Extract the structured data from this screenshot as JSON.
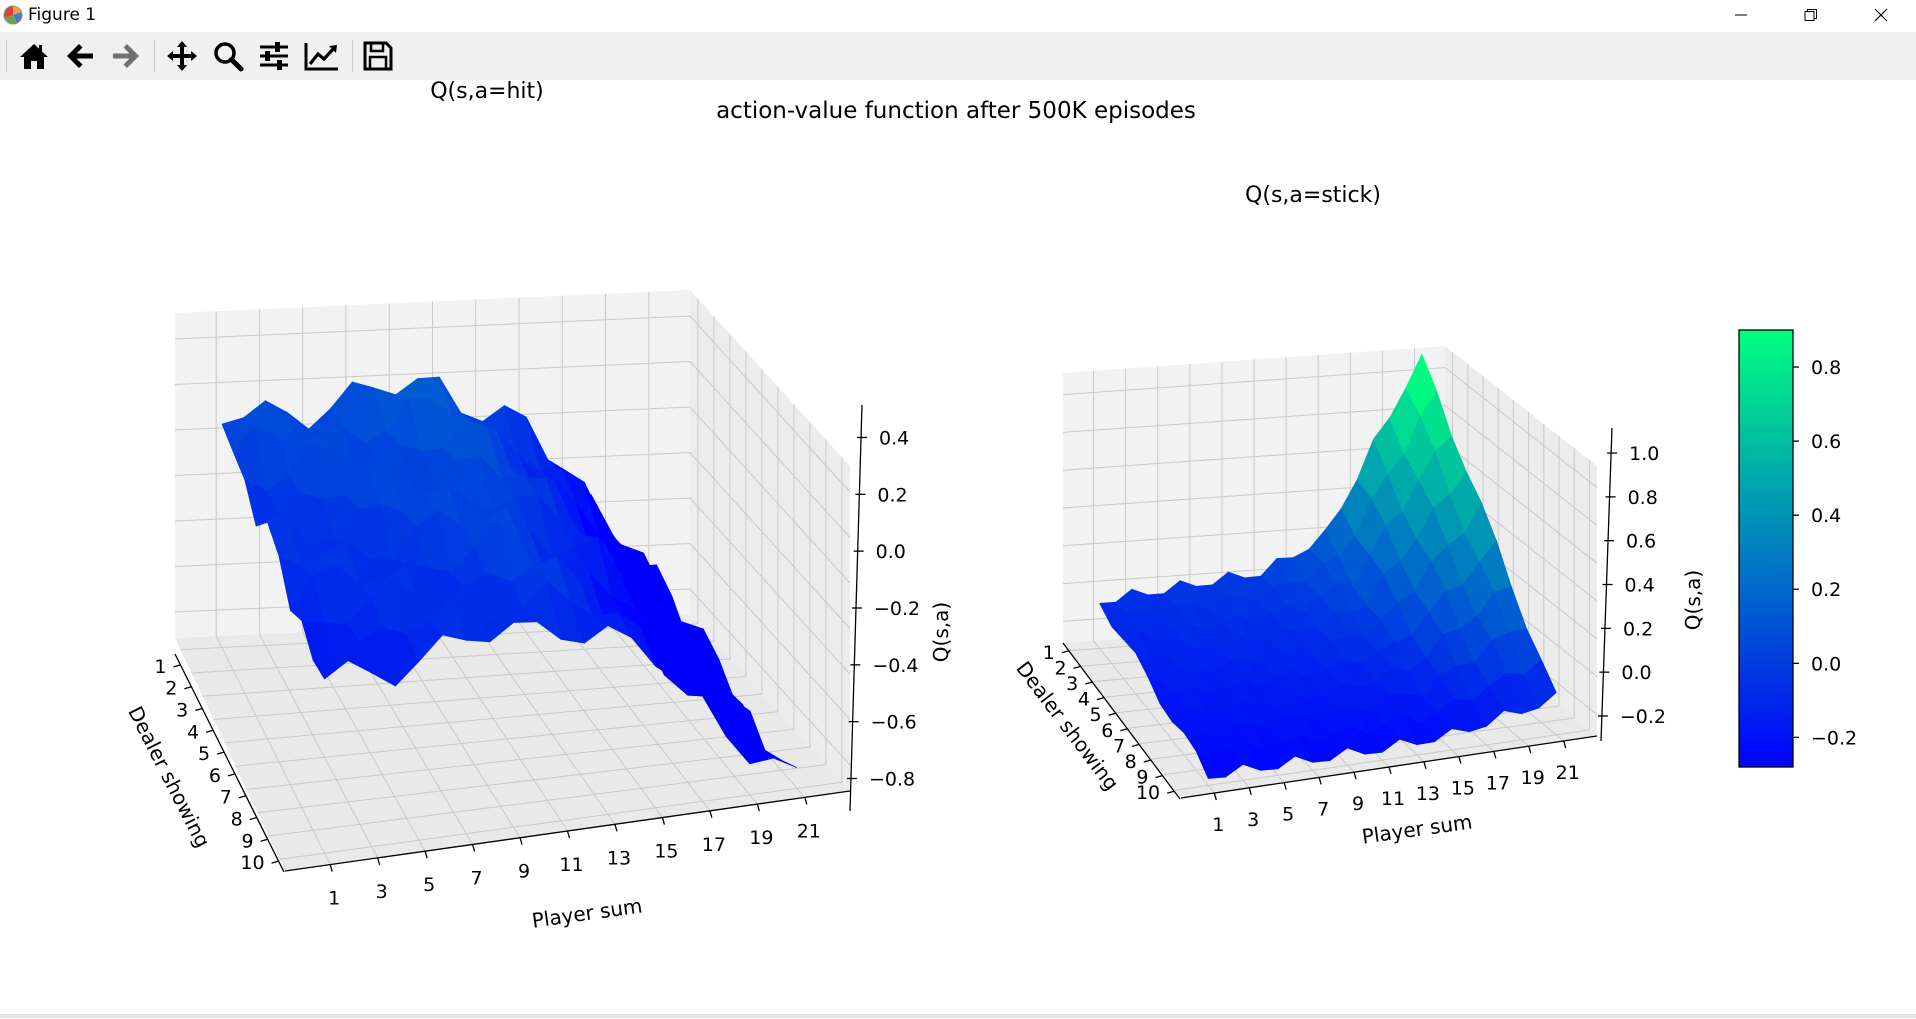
{
  "window": {
    "title": "Figure 1",
    "app_icon": "matplotlib-icon",
    "controls": [
      "minimize-icon",
      "restore-icon",
      "close-icon"
    ]
  },
  "toolbar": {
    "buttons": [
      {
        "name": "home",
        "icon": "home-icon"
      },
      {
        "name": "back",
        "icon": "arrow-left-icon"
      },
      {
        "name": "forward",
        "icon": "arrow-right-icon"
      },
      {
        "name": "pan",
        "icon": "move-icon"
      },
      {
        "name": "zoom",
        "icon": "search-icon"
      },
      {
        "name": "configure-subplots",
        "icon": "sliders-icon"
      },
      {
        "name": "edit-axes",
        "icon": "chart-line-icon"
      },
      {
        "name": "save",
        "icon": "save-icon"
      }
    ]
  },
  "figure": {
    "suptitle": "action-value function after 500K episodes",
    "colormap": "winter",
    "colors": {
      "low": "#0000ff",
      "high": "#00ff80",
      "pane": "#f2f2f2",
      "grid": "#c8c8c8"
    }
  },
  "chart_data": [
    {
      "type": "surface",
      "title": "Q(s,a=hit)",
      "xlabel": "Player sum",
      "ylabel": "Dealer showing",
      "zlabel": "Q(s,a)",
      "x_ticks": [
        "1",
        "3",
        "5",
        "7",
        "9",
        "11",
        "13",
        "15",
        "17",
        "19",
        "21"
      ],
      "y_ticks": [
        "1",
        "2",
        "3",
        "4",
        "5",
        "6",
        "7",
        "8",
        "9",
        "10"
      ],
      "z_ticks": [
        "−0.8",
        "−0.6",
        "−0.4",
        "−0.2",
        "0.0",
        "0.2",
        "0.4"
      ],
      "zlim": [
        -0.8,
        0.4
      ],
      "x": [
        1,
        21
      ],
      "y": [
        1,
        10
      ]
    },
    {
      "type": "surface",
      "title": "Q(s,a=stick)",
      "xlabel": "Player sum",
      "ylabel": "Dealer showing",
      "zlabel": "Q(s,a)",
      "x_ticks": [
        "1",
        "3",
        "5",
        "7",
        "9",
        "11",
        "13",
        "15",
        "17",
        "19",
        "21"
      ],
      "y_ticks": [
        "1",
        "2",
        "3",
        "4",
        "5",
        "6",
        "7",
        "8",
        "9",
        "10"
      ],
      "z_ticks": [
        "−0.2",
        "0.0",
        "0.2",
        "0.4",
        "0.6",
        "0.8",
        "1.0"
      ],
      "zlim": [
        -0.3,
        1.0
      ],
      "x": [
        1,
        21
      ],
      "y": [
        1,
        10
      ]
    }
  ],
  "colorbar": {
    "ticks": [
      "−0.2",
      "0.0",
      "0.2",
      "0.4",
      "0.6",
      "0.8"
    ],
    "range": [
      -0.28,
      0.9
    ],
    "values": [
      -0.2,
      0.0,
      0.2,
      0.4,
      0.6,
      0.8
    ]
  }
}
